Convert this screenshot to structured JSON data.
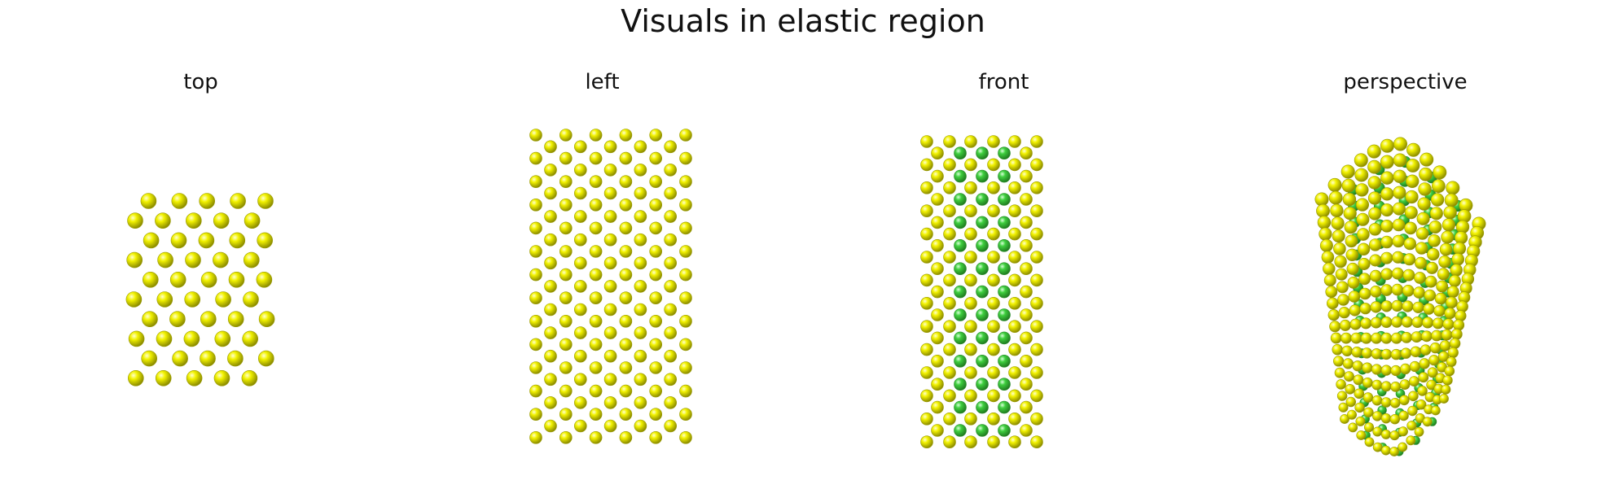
{
  "figure": {
    "title": "Visuals in elastic region"
  },
  "panels": [
    {
      "id": "top",
      "label": "top"
    },
    {
      "id": "left",
      "label": "left"
    },
    {
      "id": "front",
      "label": "front"
    },
    {
      "id": "perspective",
      "label": "perspective"
    }
  ],
  "colors": {
    "atom_outer": "#f2f200",
    "atom_inner": "#3fcf3f",
    "background": "#ffffff"
  }
}
